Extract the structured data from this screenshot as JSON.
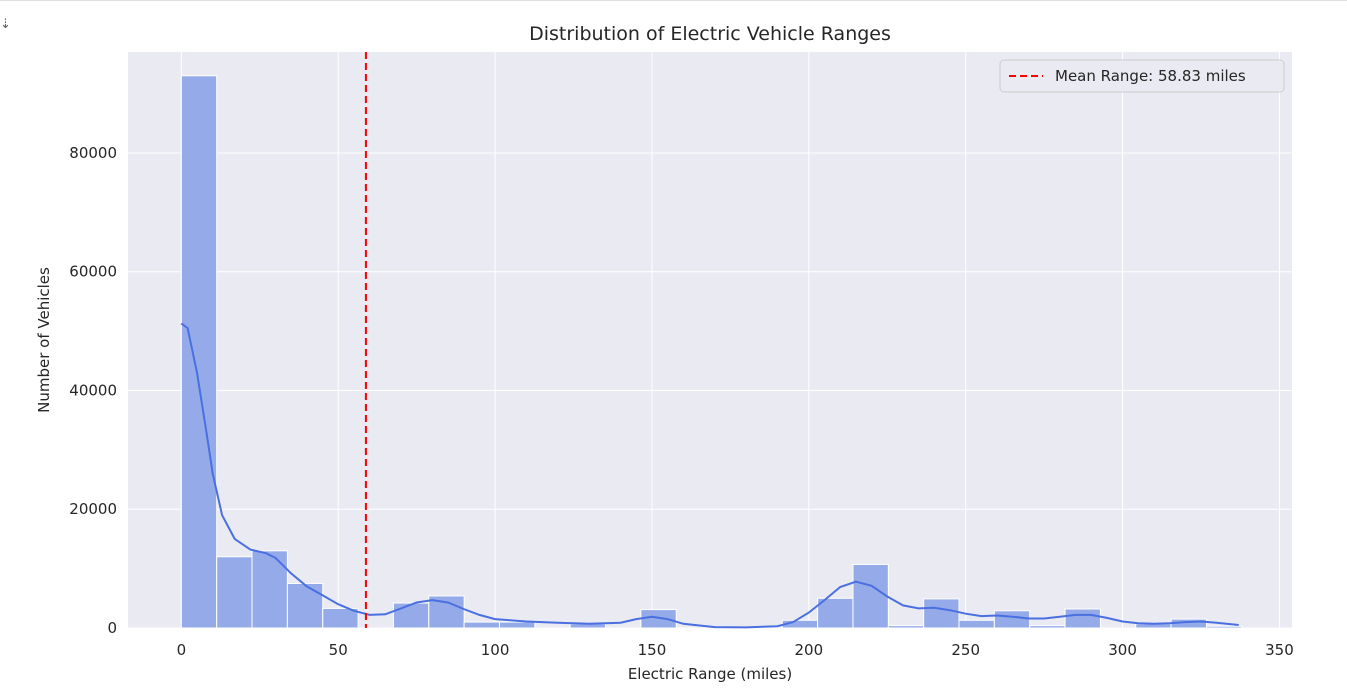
{
  "output_cell": {
    "icon": "output-collapse-icon",
    "icon_glyph": "⇣"
  },
  "chart_data": {
    "type": "bar",
    "title": "Distribution of Electric Vehicle Ranges",
    "xlabel": "Electric Range (miles)",
    "ylabel": "Number of Vehicles",
    "xlim": [
      -17,
      354
    ],
    "ylim": [
      0,
      97000
    ],
    "xticks": [
      0,
      50,
      100,
      150,
      200,
      250,
      300,
      350
    ],
    "yticks": [
      0,
      20000,
      40000,
      60000,
      80000
    ],
    "grid": true,
    "legend": {
      "position": "top-right",
      "entries": [
        "Mean Range: 58.83 miles"
      ]
    },
    "bin_width": 11.27,
    "bins": [
      {
        "x0": 0.0,
        "count": 93000
      },
      {
        "x0": 11.27,
        "count": 12000
      },
      {
        "x0": 22.53,
        "count": 13000
      },
      {
        "x0": 33.8,
        "count": 7500
      },
      {
        "x0": 45.07,
        "count": 3300
      },
      {
        "x0": 56.33,
        "count": 0
      },
      {
        "x0": 67.6,
        "count": 4200
      },
      {
        "x0": 78.87,
        "count": 5400
      },
      {
        "x0": 90.13,
        "count": 1000
      },
      {
        "x0": 101.4,
        "count": 1000
      },
      {
        "x0": 112.67,
        "count": 0
      },
      {
        "x0": 123.93,
        "count": 700
      },
      {
        "x0": 135.2,
        "count": 0
      },
      {
        "x0": 146.47,
        "count": 3100
      },
      {
        "x0": 157.73,
        "count": 0
      },
      {
        "x0": 169.0,
        "count": 0
      },
      {
        "x0": 180.27,
        "count": 0
      },
      {
        "x0": 191.53,
        "count": 1300
      },
      {
        "x0": 202.8,
        "count": 5000
      },
      {
        "x0": 214.07,
        "count": 10700
      },
      {
        "x0": 225.33,
        "count": 400
      },
      {
        "x0": 236.6,
        "count": 4900
      },
      {
        "x0": 247.87,
        "count": 1300
      },
      {
        "x0": 259.13,
        "count": 2900
      },
      {
        "x0": 270.4,
        "count": 400
      },
      {
        "x0": 281.67,
        "count": 3200
      },
      {
        "x0": 292.93,
        "count": 0
      },
      {
        "x0": 304.2,
        "count": 700
      },
      {
        "x0": 315.47,
        "count": 1500
      },
      {
        "x0": 326.73,
        "count": 300
      }
    ],
    "kde": {
      "name": "KDE",
      "x": [
        0,
        2,
        5,
        8,
        10,
        13,
        17,
        22,
        27,
        30,
        35,
        40,
        45,
        50,
        55,
        60,
        65,
        70,
        75,
        80,
        85,
        90,
        95,
        100,
        110,
        120,
        130,
        140,
        145,
        150,
        155,
        160,
        170,
        180,
        190,
        195,
        200,
        205,
        210,
        215,
        220,
        225,
        230,
        235,
        240,
        245,
        250,
        255,
        260,
        265,
        270,
        275,
        280,
        285,
        290,
        295,
        300,
        305,
        310,
        315,
        320,
        325,
        330,
        337
      ],
      "y": [
        51300,
        50500,
        43000,
        33000,
        26000,
        19000,
        15000,
        13200,
        12600,
        11800,
        9200,
        7000,
        5500,
        4000,
        2900,
        2200,
        2300,
        3300,
        4300,
        4700,
        4300,
        3200,
        2200,
        1500,
        1100,
        900,
        700,
        900,
        1500,
        1900,
        1500,
        700,
        150,
        100,
        300,
        1000,
        2600,
        4700,
        6900,
        7800,
        7100,
        5300,
        3800,
        3300,
        3400,
        3000,
        2400,
        2000,
        2100,
        1900,
        1600,
        1600,
        1900,
        2200,
        2200,
        1700,
        1100,
        800,
        700,
        800,
        1000,
        1100,
        900,
        500
      ]
    },
    "mean_line": {
      "value": 58.83,
      "label": "Mean Range: 58.83 miles"
    },
    "colors": {
      "plot_background": "#eaeaf2",
      "grid": "#ffffff",
      "bar_fill": "#95abe9",
      "bar_edge": "#ffffff",
      "kde_line": "#4a6fe0",
      "mean_line": "#ff0000",
      "text": "#262626"
    }
  }
}
